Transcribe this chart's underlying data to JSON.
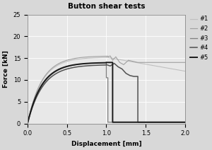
{
  "title": "Button shear tests",
  "xlabel": "Displacement [mm]",
  "ylabel": "Force [kN]",
  "xlim": [
    0,
    2
  ],
  "ylim": [
    0,
    25
  ],
  "xticks": [
    0,
    0.5,
    1.0,
    1.5,
    2.0
  ],
  "yticks": [
    0,
    5,
    10,
    15,
    20,
    25
  ],
  "legend_labels": [
    "#1",
    "#2",
    "#3",
    "#4",
    "#5"
  ],
  "line_colors": [
    "#c0c0c0",
    "#a0a0a0",
    "#808080",
    "#505050",
    "#1a1a1a"
  ],
  "line_widths": [
    0.8,
    0.8,
    0.9,
    1.1,
    1.4
  ],
  "bg_color": "#e8e8e8",
  "fig_color": "#d8d8d8"
}
